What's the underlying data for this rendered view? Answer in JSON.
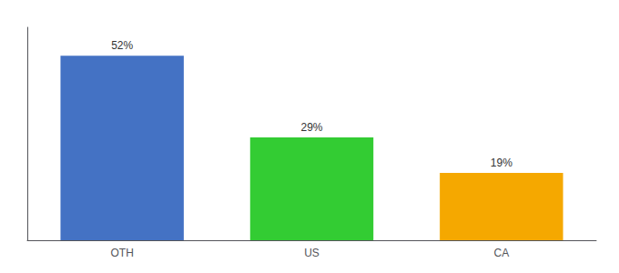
{
  "chart_data": {
    "type": "bar",
    "categories": [
      "OTH",
      "US",
      "CA"
    ],
    "values": [
      52,
      29,
      19
    ],
    "value_labels": [
      "52%",
      "29%",
      "19%"
    ],
    "data_labels": true,
    "colors": [
      "#4472c4",
      "#33cc33",
      "#f5a800"
    ],
    "ylim": [
      0,
      60
    ],
    "tick_labels": "x",
    "grid": false
  }
}
